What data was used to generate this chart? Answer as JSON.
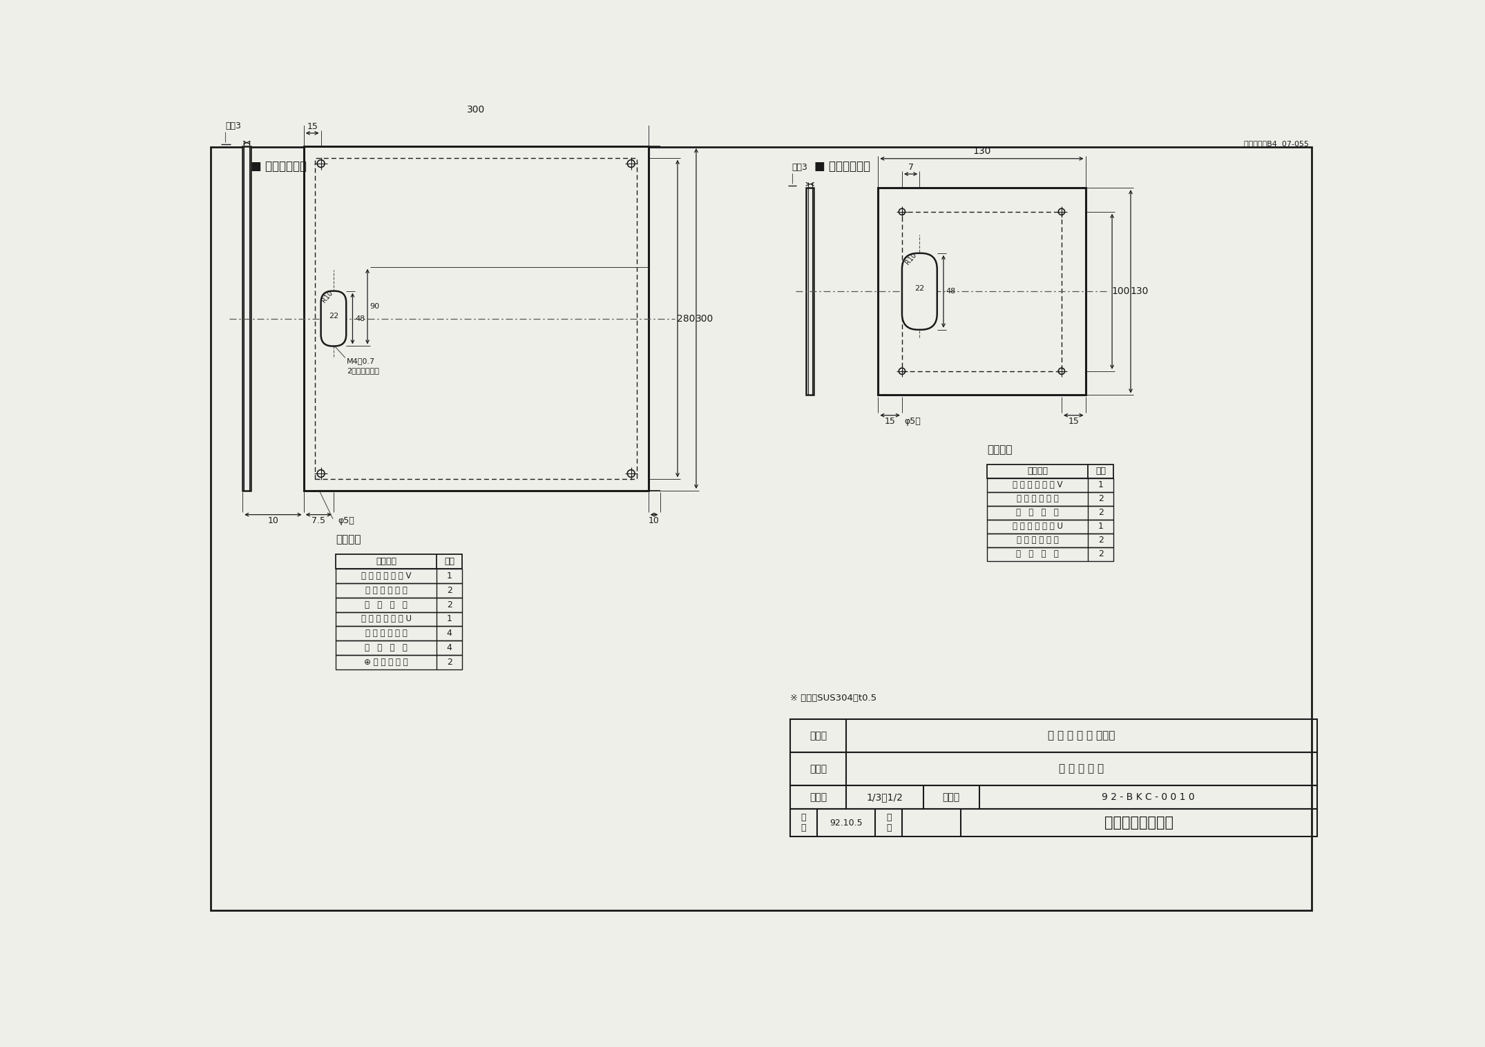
{
  "bg_color": "#f0f0eb",
  "line_color": "#1a1a1a",
  "title_top_right": "図面サイズB4  07-055",
  "title_large": "■ 化粧カバー大",
  "title_small": "■ 化粧カバー小",
  "material_note": "※ 材質：SUS304，t0.5",
  "table1_title": "構成部品",
  "table1_rows": [
    [
      "化 粧 カ バ ー 大 V",
      "1"
    ],
    [
      "オ ー ル プ ラ グ",
      "2"
    ],
    [
      "丸   木   ネ   ジ",
      "2"
    ],
    [
      "化 粧 カ バ ー 大 U",
      "1"
    ],
    [
      "オ ー ル プ ラ グ",
      "4"
    ],
    [
      "丸   木   ネ   ジ",
      "4"
    ],
    [
      "⊕ ト ラ ス ネ ジ",
      "2"
    ]
  ],
  "table2_title": "構成部品",
  "table2_rows": [
    [
      "化 粧 カ バ ー 小 V",
      "1"
    ],
    [
      "オ ー ル プ ラ グ",
      "2"
    ],
    [
      "丸   木   ネ   ジ",
      "2"
    ],
    [
      "化 粧 カ バ ー 小 U",
      "1"
    ],
    [
      "オ ー ル プ ラ グ",
      "2"
    ],
    [
      "丸   木   ネ   ジ",
      "2"
    ]
  ],
  "info_table": {
    "keishiki": "化 粧 カ バ ー 大・小",
    "zuname": "名 称 寸 法 図",
    "shakudo": "1/3・1/2",
    "zuban": "9 2 - B K C - 0 0 1 0",
    "sakusei": "92.10.5",
    "company": "株式会社ノーリツ"
  }
}
